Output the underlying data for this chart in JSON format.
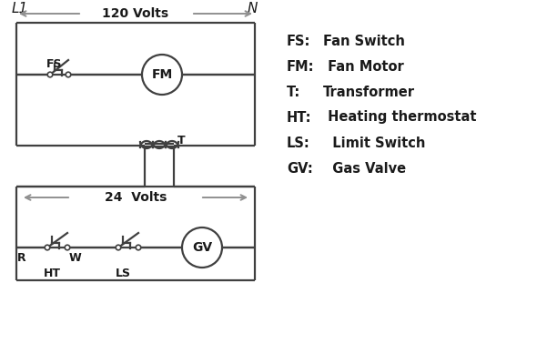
{
  "bg_color": "#ffffff",
  "line_color": "#404040",
  "arrow_color": "#909090",
  "text_color": "#1a1a1a",
  "legend_items": [
    [
      "FS:",
      "Fan Switch"
    ],
    [
      "FM:",
      " Fan Motor"
    ],
    [
      "T:",
      "  Transformer"
    ],
    [
      "HT:",
      " Heating thermostat"
    ],
    [
      "LS:",
      "  Limit Switch"
    ],
    [
      "GV:",
      "  Gas Valve"
    ]
  ],
  "L1_label": "L1",
  "N_label": "N",
  "v120_label": "120 Volts",
  "v24_label": "24  Volts"
}
